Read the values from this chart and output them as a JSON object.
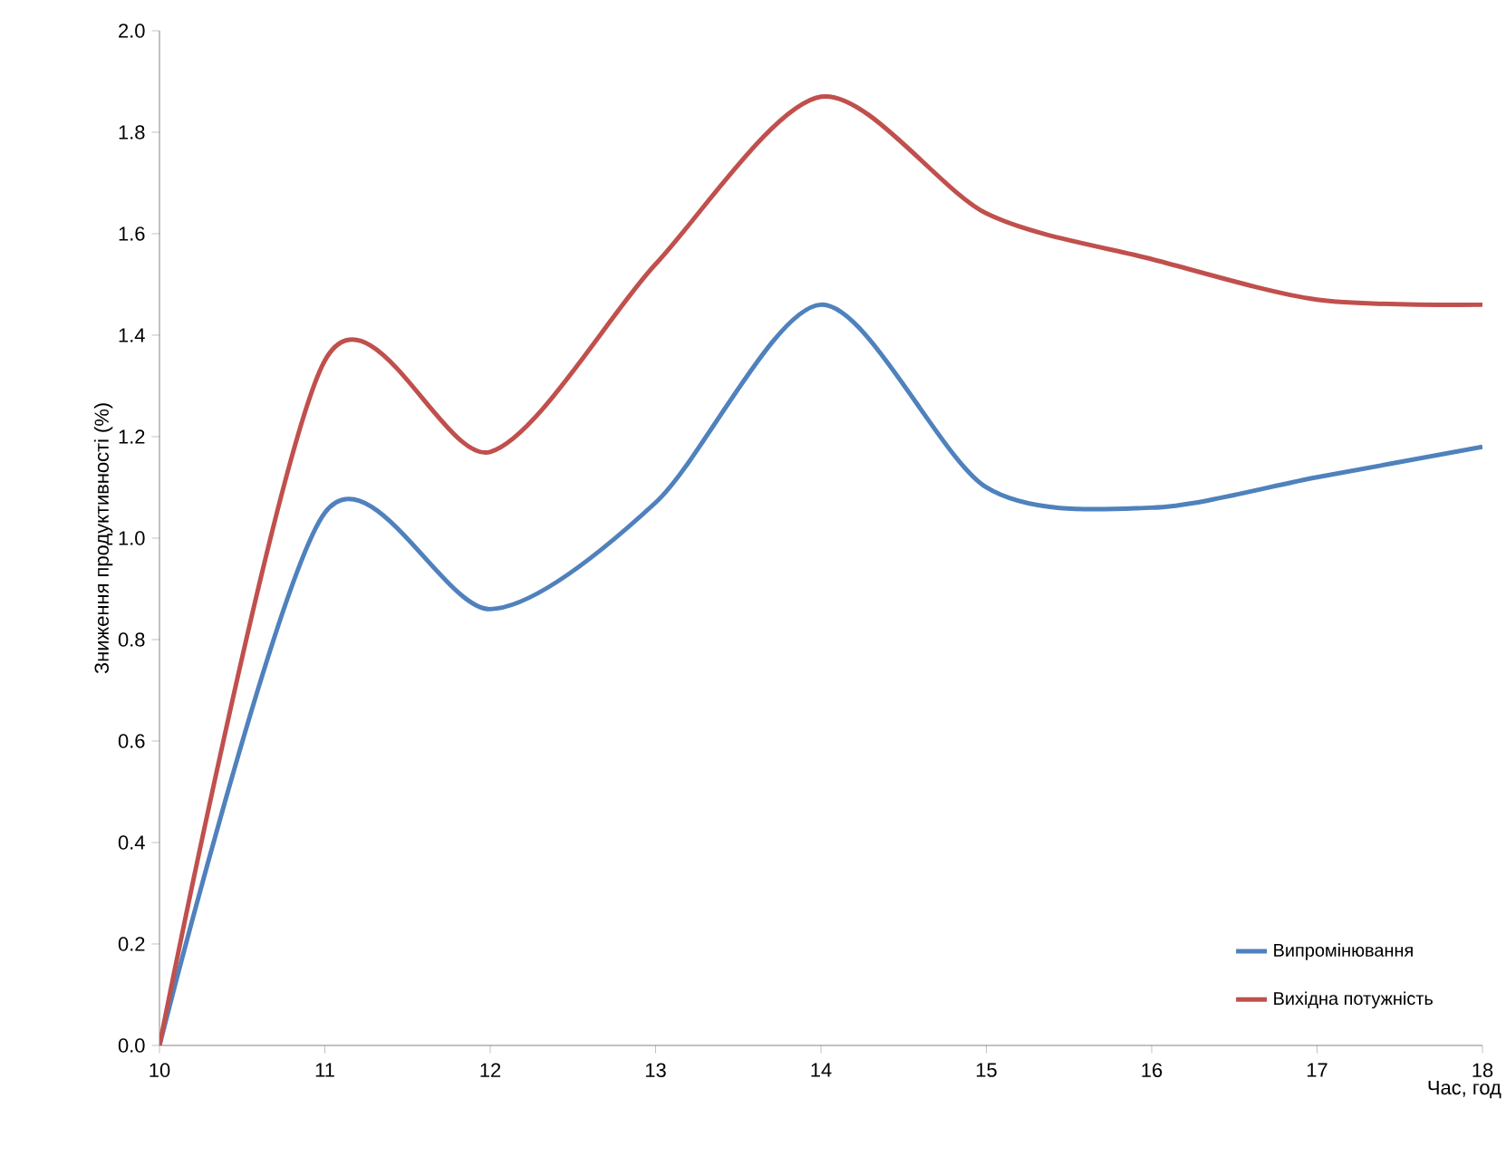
{
  "chart_data": {
    "type": "line",
    "xlabel": "Час, год",
    "ylabel": "Зниження продуктивності (%)",
    "x": [
      10,
      11,
      12,
      13,
      14,
      15,
      16,
      17,
      18
    ],
    "series": [
      {
        "name": "Випромінювання",
        "color": "#4f81bd",
        "values": [
          0,
          1.05,
          0.86,
          1.07,
          1.46,
          1.1,
          1.06,
          1.12,
          1.18
        ]
      },
      {
        "name": "Вихідна потужність",
        "color": "#c0504d",
        "values": [
          0,
          1.35,
          1.17,
          1.54,
          1.87,
          1.64,
          1.55,
          1.47,
          1.46
        ]
      }
    ],
    "xlim": [
      10,
      18
    ],
    "ylim": [
      0,
      2
    ],
    "xticks": [
      10,
      11,
      12,
      13,
      14,
      15,
      16,
      17,
      18
    ],
    "yticks": [
      {
        "value": 0,
        "label": "0.0"
      },
      {
        "value": 0.2,
        "label": "0.2"
      },
      {
        "value": 0.4,
        "label": "0.4"
      },
      {
        "value": 0.6,
        "label": "0.6"
      },
      {
        "value": 0.8,
        "label": "0.8"
      },
      {
        "value": 1,
        "label": "1.0"
      },
      {
        "value": 1.2,
        "label": "1.2"
      },
      {
        "value": 1.4,
        "label": "1.4"
      },
      {
        "value": 1.6,
        "label": "1.6"
      },
      {
        "value": 1.8,
        "label": "1.8"
      },
      {
        "value": 2,
        "label": "2.0"
      }
    ],
    "legend": "bottom right",
    "marker": "none"
  }
}
